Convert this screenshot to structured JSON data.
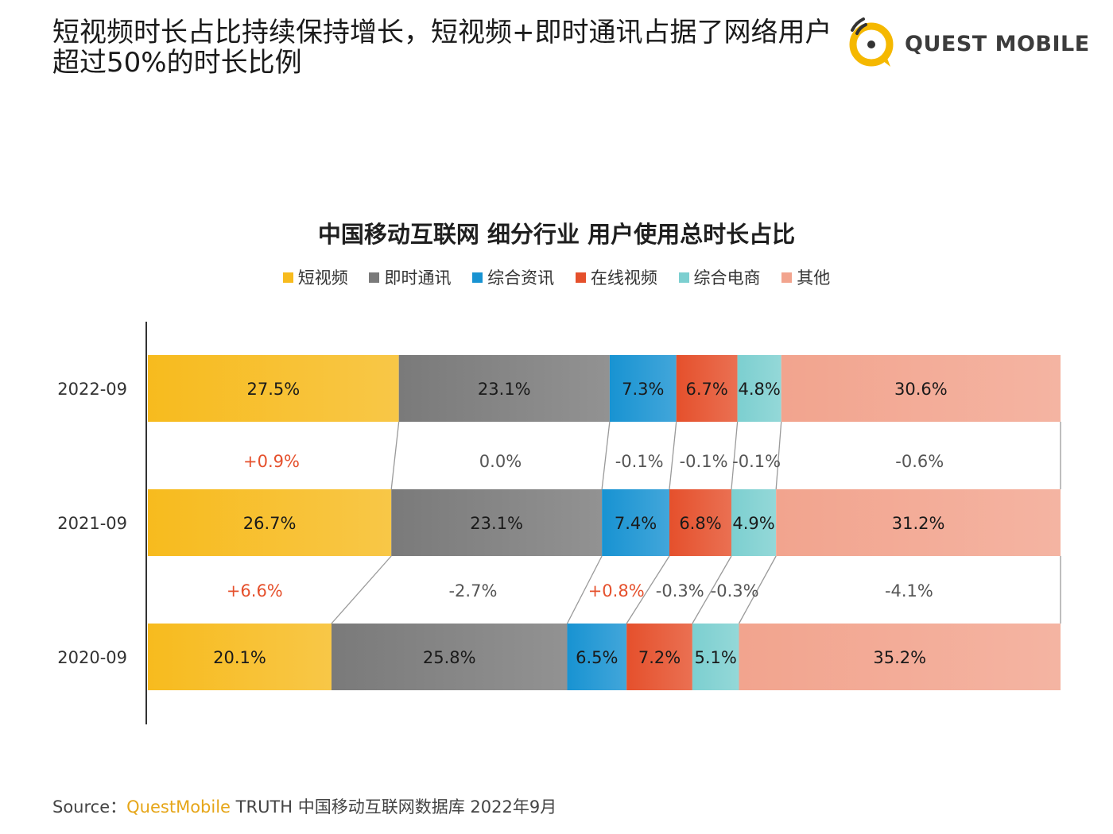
{
  "headline": "短视频时长占比持续保持增长，短视频+即时通讯占据了网络用户超过50%的时长比例",
  "logo": {
    "text": "QUEST MOBILE"
  },
  "source": {
    "prefix": "Source：",
    "brand": "QuestMobile",
    "rest": " TRUTH 中国移动互联网数据库 2022年9月"
  },
  "chart_data": {
    "type": "bar",
    "orientation": "horizontal",
    "stacked": true,
    "title": "中国移动互联网 细分行业 用户使用总时长占比",
    "legend_position": "top",
    "categories": [
      "2022-09",
      "2021-09",
      "2020-09"
    ],
    "series": [
      {
        "name": "短视频",
        "color": "#F7BB1E",
        "values": [
          27.5,
          26.7,
          20.1
        ]
      },
      {
        "name": "即时通讯",
        "color": "#7A7A7A",
        "values": [
          23.1,
          23.1,
          25.8
        ]
      },
      {
        "name": "综合资讯",
        "color": "#1893D2",
        "values": [
          7.3,
          7.4,
          6.5
        ]
      },
      {
        "name": "在线视频",
        "color": "#E5502C",
        "values": [
          6.7,
          6.8,
          7.2
        ]
      },
      {
        "name": "综合电商",
        "color": "#7CCFD0",
        "values": [
          4.8,
          4.9,
          5.1
        ]
      },
      {
        "name": "其他",
        "color": "#F2A48E",
        "values": [
          30.6,
          31.2,
          35.2
        ]
      }
    ],
    "value_labels": [
      [
        "27.5%",
        "23.1%",
        "7.3%",
        "6.7%",
        "4.8%",
        "30.6%"
      ],
      [
        "26.7%",
        "23.1%",
        "7.4%",
        "6.8%",
        "4.9%",
        "31.2%"
      ],
      [
        "20.1%",
        "25.8%",
        "6.5%",
        "7.2%",
        "5.1%",
        "35.2%"
      ]
    ],
    "changes": [
      {
        "between": [
          "2021-09",
          "2022-09"
        ],
        "labels": [
          "+0.9%",
          "0.0%",
          "-0.1%",
          "-0.1%",
          "-0.1%",
          "-0.6%"
        ]
      },
      {
        "between": [
          "2020-09",
          "2021-09"
        ],
        "labels": [
          "+6.6%",
          "-2.7%",
          "+0.8%",
          "-0.3%",
          "-0.3%",
          "-4.1%"
        ]
      }
    ],
    "colors": {
      "increase": "#E5502C",
      "decrease": "#555555"
    }
  }
}
